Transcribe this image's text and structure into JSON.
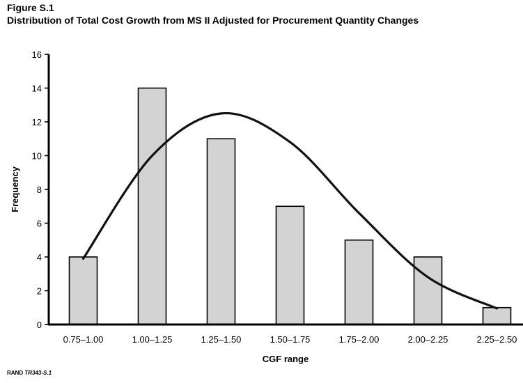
{
  "figure": {
    "label": "Figure S.1",
    "title": "Distribution of Total Cost Growth from MS II Adjusted for Procurement Quantity Changes"
  },
  "credit": {
    "org": "RAND",
    "id": "TR343-S.1"
  },
  "chart_data": {
    "type": "bar",
    "title": "Distribution of Total Cost Growth from MS II Adjusted for Procurement Quantity Changes",
    "xlabel": "CGF range",
    "ylabel": "Frequency",
    "categories": [
      "0.75–1.00",
      "1.00–1.25",
      "1.25–1.50",
      "1.50–1.75",
      "1.75–2.00",
      "2.00–2.25",
      "2.25–2.50"
    ],
    "values": [
      4,
      14,
      11,
      7,
      5,
      4,
      1
    ],
    "ylim": [
      0,
      16
    ],
    "yticks": [
      0,
      2,
      4,
      6,
      8,
      10,
      12,
      14,
      16
    ],
    "grid": false,
    "legend": "none",
    "bar_color": "#d3d3d3",
    "curve": {
      "type": "line",
      "description_points": [
        {
          "x": "0.75–1.00",
          "y": 3.9
        },
        {
          "x": "1.00–1.25",
          "y": 10.0
        },
        {
          "x": "1.25–1.50",
          "y": 12.5
        },
        {
          "x": "1.50–1.75",
          "y": 10.8
        },
        {
          "x": "1.75–2.00",
          "y": 6.6
        },
        {
          "x": "2.00–2.25",
          "y": 2.8
        },
        {
          "x": "2.25–2.50",
          "y": 0.95
        }
      ]
    }
  }
}
